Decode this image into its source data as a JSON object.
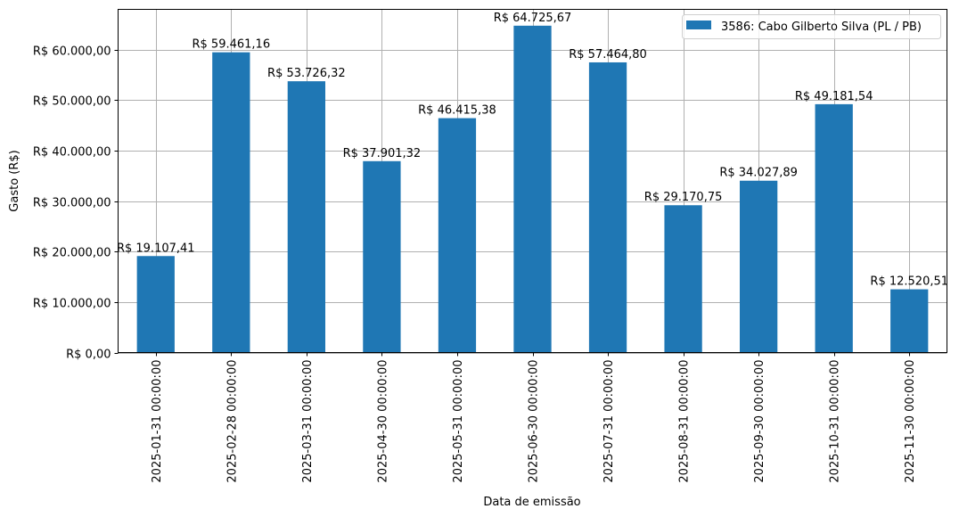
{
  "chart_data": {
    "type": "bar",
    "title": "",
    "xlabel": "Data de emissão",
    "ylabel": "Gasto (R$)",
    "ylim": [
      0,
      67962
    ],
    "grid": true,
    "legend_position": "upper right",
    "bar_color": "#1f77b4",
    "categories": [
      "2025-01-31 00:00:00",
      "2025-02-28 00:00:00",
      "2025-03-31 00:00:00",
      "2025-04-30 00:00:00",
      "2025-05-31 00:00:00",
      "2025-06-30 00:00:00",
      "2025-07-31 00:00:00",
      "2025-08-31 00:00:00",
      "2025-09-30 00:00:00",
      "2025-10-31 00:00:00",
      "2025-11-30 00:00:00"
    ],
    "series": [
      {
        "name": "3586: Cabo Gilberto Silva (PL / PB)",
        "values": [
          19107.41,
          59461.16,
          53726.32,
          37901.32,
          46415.38,
          64725.67,
          57464.8,
          29170.75,
          34027.89,
          49181.54,
          12520.51
        ]
      }
    ],
    "value_labels": [
      "R$ 19.107,41",
      "R$ 59.461,16",
      "R$ 53.726,32",
      "R$ 37.901,32",
      "R$ 46.415,38",
      "R$ 64.725,67",
      "R$ 57.464,80",
      "R$ 29.170,75",
      "R$ 34.027,89",
      "R$ 49.181,54",
      "R$ 12.520,51"
    ],
    "yticks": [
      0,
      10000,
      20000,
      30000,
      40000,
      50000,
      60000
    ],
    "ytick_labels": [
      "R$ 0,00",
      "R$ 10.000,00",
      "R$ 20.000,00",
      "R$ 30.000,00",
      "R$ 40.000,00",
      "R$ 50.000,00",
      "R$ 60.000,00"
    ]
  }
}
